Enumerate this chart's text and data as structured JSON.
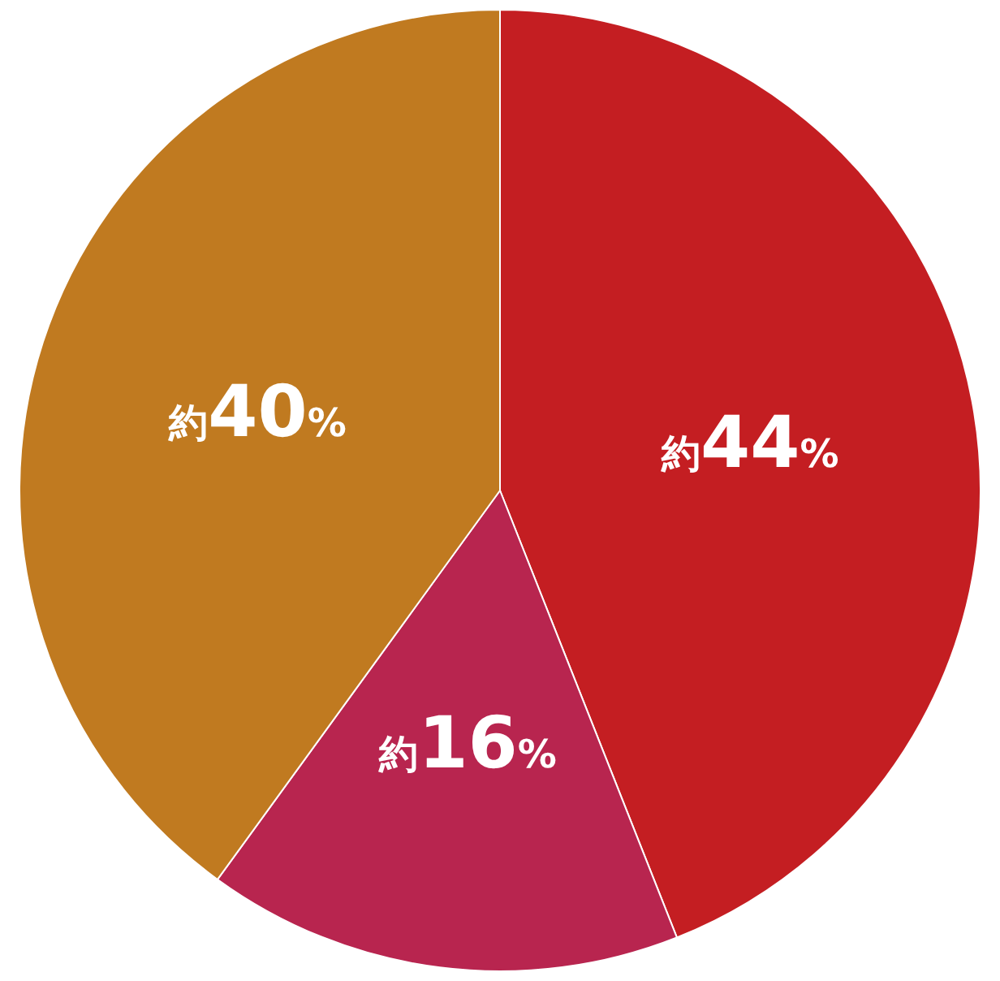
{
  "chart_data": {
    "type": "pie",
    "categories": [
      null,
      null,
      null
    ],
    "values": [
      44,
      16,
      40
    ],
    "colors": [
      "#c41e22",
      "#b8254f",
      "#c07a20"
    ],
    "value_labels": [
      "約44%",
      "約16%",
      "約40%"
    ]
  }
}
